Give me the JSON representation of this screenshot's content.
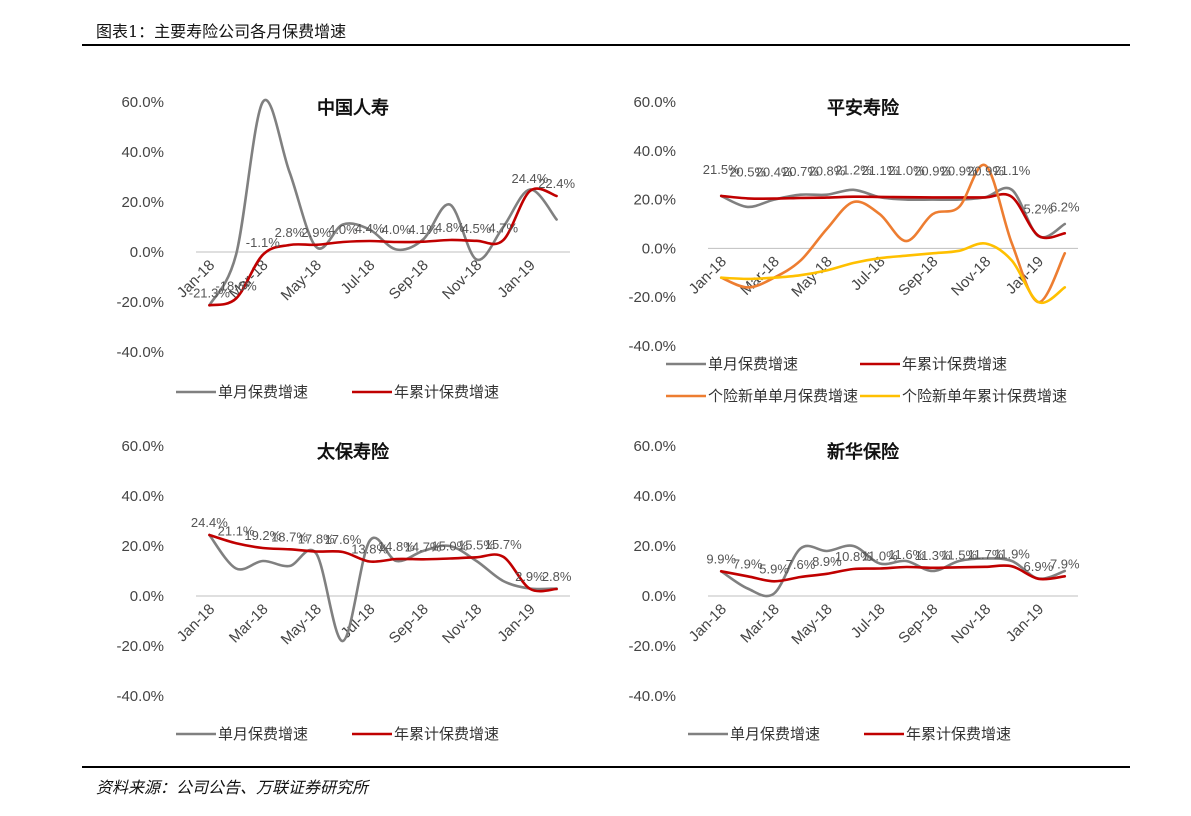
{
  "header": {
    "title": "图表1：主要寿险公司各月保费增速"
  },
  "footer": {
    "source": "资料来源：公司公告、万联证券研究所"
  },
  "colors": {
    "monthly": "#808080",
    "cumulative": "#c00000",
    "indiv_monthly": "#ed7d31",
    "indiv_cumulative": "#ffc000"
  },
  "chart_data": [
    {
      "type": "line",
      "title": "中国人寿",
      "ylim": [
        -40,
        60
      ],
      "yticks": [
        "60.0%",
        "40.0%",
        "20.0%",
        "0.0%",
        "-20.0%",
        "-40.0%"
      ],
      "categories": [
        "Jan-18",
        "Feb-18",
        "Mar-18",
        "Apr-18",
        "May-18",
        "Jun-18",
        "Jul-18",
        "Aug-18",
        "Sep-18",
        "Oct-18",
        "Nov-18",
        "Dec-18",
        "Jan-19",
        "Feb-19"
      ],
      "xticklabels": [
        "Jan-18",
        "Mar-18",
        "May-18",
        "Jul-18",
        "Sep-18",
        "Nov-18",
        "Jan-19"
      ],
      "series": [
        {
          "name": "单月保费增速",
          "color_key": "monthly",
          "values": [
            -21.3,
            -1,
            60,
            32,
            2,
            11,
            9,
            1,
            5,
            19,
            -3,
            10,
            25,
            13
          ]
        },
        {
          "name": "年累计保费增速",
          "color_key": "cumulative",
          "values": [
            -21.3,
            -18.6,
            -1.1,
            2.8,
            2.9,
            4.0,
            4.4,
            4.0,
            4.1,
            4.8,
            4.5,
            4.7,
            24.4,
            22.4
          ],
          "labels": [
            "-21.3%",
            "-18.6%",
            "-1.1%",
            "2.8%",
            "2.9%",
            "4.0%",
            "4.4%",
            "4.0%",
            "4.1%",
            "4.8%",
            "4.5%",
            "4.7%",
            "24.4%",
            "22.4%"
          ]
        }
      ],
      "legend": [
        "单月保费增速",
        "年累计保费增速"
      ]
    },
    {
      "type": "line",
      "title": "平安寿险",
      "ylim": [
        -40,
        60
      ],
      "yticks": [
        "60.0%",
        "40.0%",
        "20.0%",
        "0.0%",
        "-20.0%",
        "-40.0%"
      ],
      "categories": [
        "Jan-18",
        "Feb-18",
        "Mar-18",
        "Apr-18",
        "May-18",
        "Jun-18",
        "Jul-18",
        "Aug-18",
        "Sep-18",
        "Oct-18",
        "Nov-18",
        "Dec-18",
        "Jan-19",
        "Feb-19"
      ],
      "xticklabels": [
        "Jan-18",
        "Mar-18",
        "May-18",
        "Jul-18",
        "Sep-18",
        "Nov-18",
        "Jan-19"
      ],
      "series": [
        {
          "name": "单月保费增速",
          "color_key": "monthly",
          "values": [
            21.5,
            17,
            20,
            22,
            22,
            24,
            21,
            20,
            20,
            20,
            21,
            24,
            5,
            10
          ]
        },
        {
          "name": "年累计保费增速",
          "color_key": "cumulative",
          "values": [
            21.5,
            20.5,
            20.4,
            20.7,
            20.8,
            21.2,
            21.1,
            21.0,
            20.9,
            20.9,
            20.9,
            21.1,
            5.2,
            6.2
          ],
          "labels": [
            "21.5%",
            "20.5%",
            "20.4%",
            "20.7%",
            "20.8%",
            "21.2%",
            "21.1%",
            "21.0%",
            "20.9%",
            "20.9%",
            "20.9%",
            "21.1%",
            "5.2%",
            "6.2%"
          ]
        },
        {
          "name": "个险新单单月保费增速",
          "color_key": "indiv_monthly",
          "values": [
            -12,
            -16,
            -12,
            -5,
            8,
            19,
            14,
            3,
            14,
            17,
            34,
            2,
            -22,
            -2
          ]
        },
        {
          "name": "个险新单年累计保费增速",
          "color_key": "indiv_cumulative",
          "values": [
            -12,
            -12.5,
            -12,
            -11,
            -9,
            -6,
            -4,
            -3,
            -2,
            -1,
            2,
            -5,
            -22,
            -16
          ]
        }
      ],
      "legend": [
        "单月保费增速",
        "年累计保费增速",
        "个险新单单月保费增速",
        "个险新单年累计保费增速"
      ]
    },
    {
      "type": "line",
      "title": "太保寿险",
      "ylim": [
        -40,
        60
      ],
      "yticks": [
        "60.0%",
        "40.0%",
        "20.0%",
        "0.0%",
        "-20.0%",
        "-40.0%"
      ],
      "categories": [
        "Jan-18",
        "Feb-18",
        "Mar-18",
        "Apr-18",
        "May-18",
        "Jun-18",
        "Jul-18",
        "Aug-18",
        "Sep-18",
        "Oct-18",
        "Nov-18",
        "Dec-18",
        "Jan-19",
        "Feb-19"
      ],
      "xticklabels": [
        "Jan-18",
        "Mar-18",
        "May-18",
        "Jul-18",
        "Sep-18",
        "Nov-18",
        "Jan-19"
      ],
      "series": [
        {
          "name": "单月保费增速",
          "color_key": "monthly",
          "values": [
            24.4,
            11,
            14,
            12,
            17,
            -18,
            22,
            14,
            18,
            20,
            14,
            6,
            3,
            3
          ]
        },
        {
          "name": "年累计保费增速",
          "color_key": "cumulative",
          "values": [
            24.4,
            21.1,
            19.2,
            18.7,
            17.8,
            17.6,
            13.8,
            14.8,
            14.7,
            15.0,
            15.5,
            15.7,
            2.9,
            2.8
          ],
          "labels": [
            "24.4%",
            "21.1%",
            "19.2%",
            "18.7%",
            "17.8%",
            "17.6%",
            "13.8%",
            "14.8%",
            "14.7%",
            "15.0%",
            "15.5%",
            "15.7%",
            "2.9%",
            "2.8%"
          ]
        }
      ],
      "legend": [
        "单月保费增速",
        "年累计保费增速"
      ]
    },
    {
      "type": "line",
      "title": "新华保险",
      "ylim": [
        -40,
        60
      ],
      "yticks": [
        "60.0%",
        "40.0%",
        "20.0%",
        "0.0%",
        "-20.0%",
        "-40.0%"
      ],
      "categories": [
        "Jan-18",
        "Feb-18",
        "Mar-18",
        "Apr-18",
        "May-18",
        "Jun-18",
        "Jul-18",
        "Aug-18",
        "Sep-18",
        "Oct-18",
        "Nov-18",
        "Dec-18",
        "Jan-19",
        "Feb-19"
      ],
      "xticklabels": [
        "Jan-18",
        "Mar-18",
        "May-18",
        "Jul-18",
        "Sep-18",
        "Nov-18",
        "Jan-19"
      ],
      "series": [
        {
          "name": "单月保费增速",
          "color_key": "monthly",
          "values": [
            9.9,
            3,
            1,
            19,
            18,
            20,
            13,
            14,
            10,
            14,
            15,
            14,
            7,
            10
          ]
        },
        {
          "name": "年累计保费增速",
          "color_key": "cumulative",
          "values": [
            9.9,
            7.9,
            5.9,
            7.6,
            8.9,
            10.8,
            11.0,
            11.6,
            11.3,
            11.5,
            11.7,
            11.9,
            6.9,
            7.9
          ],
          "labels": [
            "9.9%",
            "7.9%",
            "5.9%",
            "7.6%",
            "8.9%",
            "10.8%",
            "11.0%",
            "11.6%",
            "11.3%",
            "11.5%",
            "11.7%",
            "11.9%",
            "6.9%",
            "7.9%"
          ]
        }
      ],
      "legend": [
        "单月保费增速",
        "年累计保费增速"
      ]
    }
  ]
}
